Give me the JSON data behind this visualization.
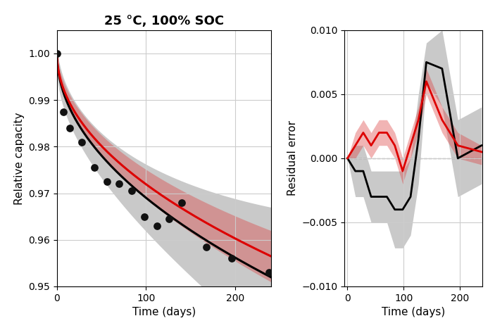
{
  "title": "25 °C, 100% SOC",
  "xlabel_left": "Time (days)",
  "ylabel_left": "Relative capacity",
  "xlabel_right": "Time (days)",
  "ylabel_right": "Residual error",
  "ylim_left": [
    0.95,
    1.005
  ],
  "ylim_right": [
    -0.01,
    0.01
  ],
  "xlim_left": [
    0,
    240
  ],
  "xlim_right": [
    -5,
    240
  ],
  "title_fontsize": 13,
  "label_fontsize": 11,
  "tick_fontsize": 10,
  "dot_color": "#111111",
  "black_line_color": "#000000",
  "red_line_color": "#dd0000",
  "black_band_color": "#888888",
  "red_band_color": "#dd4444",
  "background_color": "#ffffff",
  "grid_color": "#cccccc",
  "data_points_x": [
    0,
    7,
    14,
    28,
    42,
    56,
    70,
    84,
    98,
    112,
    126,
    140,
    168,
    196,
    238
  ],
  "data_points_y": [
    1.0,
    0.9875,
    0.984,
    0.981,
    0.9755,
    0.9725,
    0.972,
    0.9705,
    0.965,
    0.963,
    0.9645,
    0.968,
    0.9585,
    0.956,
    0.953
  ],
  "black_alpha": 0.0,
  "red_alpha": 0.0,
  "black_band_alpha": 0.45,
  "red_band_alpha": 0.4,
  "residual_x": [
    0,
    14,
    28,
    42,
    56,
    70,
    84,
    98,
    112,
    126,
    140,
    168,
    196,
    238
  ],
  "residual_black_y": [
    0.0,
    -0.001,
    -0.001,
    -0.003,
    -0.003,
    -0.003,
    -0.004,
    -0.004,
    -0.003,
    0.0015,
    0.0075,
    0.007,
    0.0,
    0.001
  ],
  "residual_red_y": [
    0.0,
    0.001,
    0.002,
    0.001,
    0.002,
    0.002,
    0.001,
    -0.001,
    0.001,
    0.003,
    0.006,
    0.003,
    0.001,
    0.0005
  ],
  "residual_black_upper": [
    0.0,
    0.001,
    0.001,
    -0.001,
    -0.001,
    -0.001,
    -0.001,
    -0.001,
    0.0,
    0.005,
    0.009,
    0.01,
    0.003,
    0.004
  ],
  "residual_black_lower": [
    0.0,
    -0.003,
    -0.003,
    -0.005,
    -0.005,
    -0.005,
    -0.007,
    -0.007,
    -0.006,
    -0.002,
    0.006,
    0.004,
    -0.003,
    -0.002
  ],
  "residual_red_upper": [
    0.0,
    0.002,
    0.003,
    0.002,
    0.003,
    0.003,
    0.002,
    0.0,
    0.002,
    0.004,
    0.007,
    0.004,
    0.002,
    0.001
  ],
  "residual_red_lower": [
    0.0,
    0.0,
    0.001,
    0.0,
    0.001,
    0.001,
    0.0,
    -0.002,
    0.0,
    0.002,
    0.005,
    0.002,
    0.0,
    -0.0005
  ]
}
